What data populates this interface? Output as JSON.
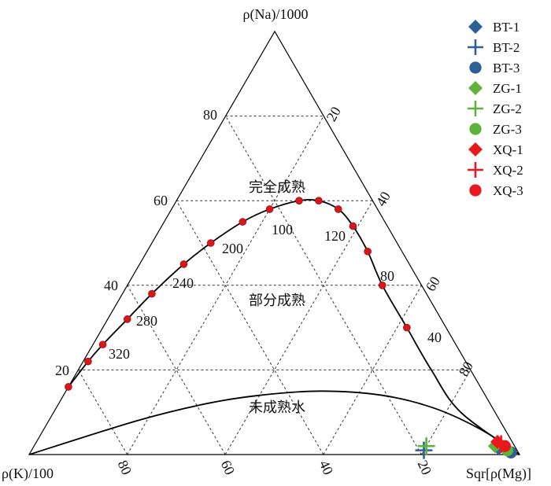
{
  "chart_data": {
    "type": "scatter",
    "subtype": "ternary",
    "corners": {
      "top": "ρ(Na)/1000",
      "left": "ρ(K)/100",
      "right": "Sqr[ρ(Mg)]"
    },
    "left_ticks": [
      "20",
      "40",
      "60",
      "80"
    ],
    "right_ticks": [
      "20",
      "40",
      "60",
      "80"
    ],
    "bottom_ticks": [
      "80",
      "60",
      "40",
      "20"
    ],
    "grid": true,
    "zones": [
      "完全成熟",
      "部分成熟",
      "未成熟水"
    ],
    "equilibrium_temperatures_c": [
      "320",
      "280",
      "240",
      "200",
      "100",
      "120",
      "80",
      "40"
    ],
    "equilibrium_curve": [
      {
        "na": 16,
        "mg": 0,
        "t": "320"
      },
      {
        "na": 22,
        "mg": 1,
        "t": ""
      },
      {
        "na": 26,
        "mg": 2,
        "t": "280"
      },
      {
        "na": 32,
        "mg": 4,
        "t": ""
      },
      {
        "na": 38,
        "mg": 6,
        "t": "240"
      },
      {
        "na": 45,
        "mg": 9,
        "t": ""
      },
      {
        "na": 50,
        "mg": 12,
        "t": "200"
      },
      {
        "na": 55,
        "mg": 16,
        "t": ""
      },
      {
        "na": 58,
        "mg": 20,
        "t": "100"
      },
      {
        "na": 60,
        "mg": 25,
        "t": ""
      },
      {
        "na": 60,
        "mg": 29,
        "t": ""
      },
      {
        "na": 58,
        "mg": 34,
        "t": "120"
      },
      {
        "na": 54,
        "mg": 39,
        "t": ""
      },
      {
        "na": 48,
        "mg": 45,
        "t": "80"
      },
      {
        "na": 40,
        "mg": 52,
        "t": ""
      },
      {
        "na": 30,
        "mg": 62,
        "t": "40"
      }
    ],
    "immature_boundary": [
      {
        "na": 0,
        "mg": 0
      },
      {
        "na": 8,
        "mg": 18
      },
      {
        "na": 12,
        "mg": 30
      },
      {
        "na": 14,
        "mg": 40
      },
      {
        "na": 15,
        "mg": 52
      },
      {
        "na": 14,
        "mg": 65
      },
      {
        "na": 11,
        "mg": 77
      },
      {
        "na": 6,
        "mg": 89
      },
      {
        "na": 0,
        "mg": 100
      }
    ],
    "series": [
      {
        "name": "BT-1",
        "marker": "diamond",
        "color": "#2e5f97",
        "points": [
          {
            "na": 1.5,
            "mg": 95
          }
        ]
      },
      {
        "name": "BT-2",
        "marker": "plus",
        "color": "#2e5f97",
        "points": [
          {
            "na": 1.0,
            "mg": 80
          }
        ]
      },
      {
        "name": "BT-3",
        "marker": "circle",
        "color": "#2e5f97",
        "points": [
          {
            "na": 0.5,
            "mg": 98
          }
        ]
      },
      {
        "name": "ZG-1",
        "marker": "diamond",
        "color": "#5db33b",
        "points": [
          {
            "na": 2.0,
            "mg": 94
          }
        ]
      },
      {
        "name": "ZG-2",
        "marker": "plus",
        "color": "#5db33b",
        "points": [
          {
            "na": 2.0,
            "mg": 80
          }
        ]
      },
      {
        "name": "ZG-3",
        "marker": "circle",
        "color": "#5db33b",
        "points": [
          {
            "na": 1.0,
            "mg": 97
          }
        ]
      },
      {
        "name": "XQ-1",
        "marker": "diamond",
        "color": "#e8191c",
        "points": [
          {
            "na": 3.0,
            "mg": 94
          }
        ]
      },
      {
        "name": "XQ-2",
        "marker": "plus",
        "color": "#e8191c",
        "points": [
          {
            "na": 2.5,
            "mg": 95
          }
        ]
      },
      {
        "name": "XQ-3",
        "marker": "circle",
        "color": "#e8191c",
        "points": [
          {
            "na": 2.0,
            "mg": 96
          }
        ]
      }
    ],
    "legend_placement": "top-right",
    "curve_point_color": "#d8171c"
  }
}
